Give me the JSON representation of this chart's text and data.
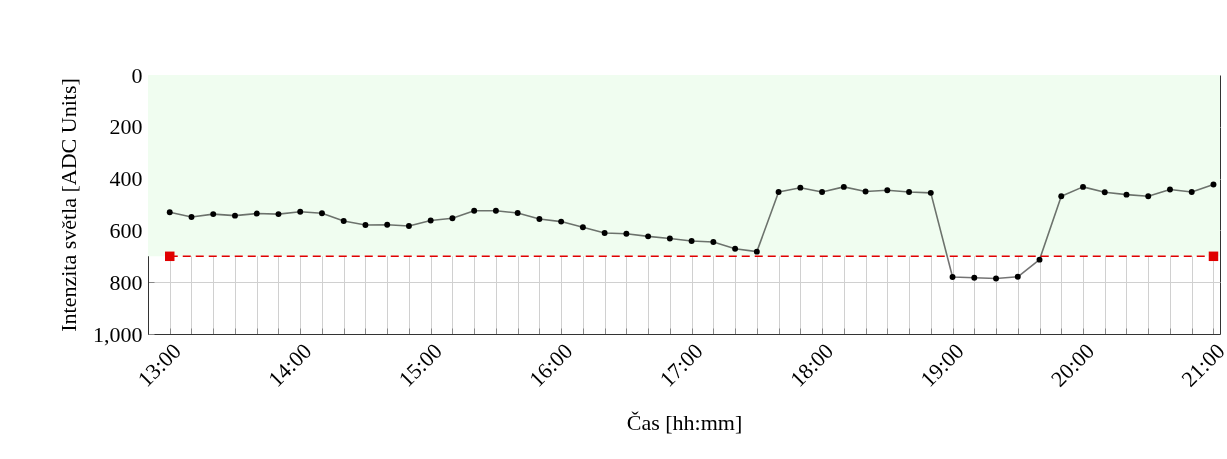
{
  "chart_data": {
    "type": "line",
    "xlabel": "Čas [hh:mm]",
    "ylabel": "Intenzita světla [ADC Units]",
    "x": [
      13,
      13.1667,
      13.3333,
      13.5,
      13.6667,
      13.8333,
      14,
      14.1667,
      14.3333,
      14.5,
      14.6667,
      14.8333,
      15,
      15.1667,
      15.3333,
      15.5,
      15.6667,
      15.8333,
      16,
      16.1667,
      16.3333,
      16.5,
      16.6667,
      16.8333,
      17,
      17.1667,
      17.3333,
      17.5,
      17.6667,
      17.8333,
      18,
      18.1667,
      18.3333,
      18.5,
      18.6667,
      18.8333,
      19,
      19.1667,
      19.3333,
      19.5,
      19.6667,
      19.8333,
      20,
      20.1667,
      20.3333,
      20.5,
      20.6667,
      20.8333,
      21
    ],
    "series": [
      {
        "color": "#000000",
        "marker": "circle",
        "line_style": "solid",
        "values": [
          530,
          548,
          537,
          543,
          535,
          537,
          528,
          534,
          564,
          579,
          578,
          583,
          562,
          553,
          524,
          524,
          533,
          556,
          566,
          588,
          610,
          613,
          623,
          631,
          641,
          645,
          671,
          682,
          452,
          435,
          452,
          432,
          450,
          445,
          452,
          455,
          780,
          783,
          786,
          779,
          713,
          468,
          432,
          453,
          462,
          468,
          442,
          452,
          423
        ]
      },
      {
        "color": "#e00000",
        "marker": "square",
        "line_style": "dashed",
        "x": [
          13,
          21
        ],
        "values": [
          700,
          700
        ]
      }
    ],
    "bands": [
      {
        "axis": "y",
        "from": 0,
        "to": 700,
        "color": "#f0fdf0"
      }
    ],
    "xlim": [
      12.8333,
      21.05
    ],
    "ylim": [
      1000,
      0
    ],
    "xticks": [
      {
        "value": 13,
        "label": "13:00"
      },
      {
        "value": 13.1667,
        "label": null
      },
      {
        "value": 13.3333,
        "label": null
      },
      {
        "value": 13.5,
        "label": null
      },
      {
        "value": 13.6667,
        "label": null
      },
      {
        "value": 13.8333,
        "label": null
      },
      {
        "value": 14,
        "label": "14:00"
      },
      {
        "value": 14.1667,
        "label": null
      },
      {
        "value": 14.3333,
        "label": null
      },
      {
        "value": 14.5,
        "label": null
      },
      {
        "value": 14.6667,
        "label": null
      },
      {
        "value": 14.8333,
        "label": null
      },
      {
        "value": 15,
        "label": "15:00"
      },
      {
        "value": 15.1667,
        "label": null
      },
      {
        "value": 15.3333,
        "label": null
      },
      {
        "value": 15.5,
        "label": null
      },
      {
        "value": 15.6667,
        "label": null
      },
      {
        "value": 15.8333,
        "label": null
      },
      {
        "value": 16,
        "label": "16:00"
      },
      {
        "value": 16.1667,
        "label": null
      },
      {
        "value": 16.3333,
        "label": null
      },
      {
        "value": 16.5,
        "label": null
      },
      {
        "value": 16.6667,
        "label": null
      },
      {
        "value": 16.8333,
        "label": null
      },
      {
        "value": 17,
        "label": "17:00"
      },
      {
        "value": 17.1667,
        "label": null
      },
      {
        "value": 17.3333,
        "label": null
      },
      {
        "value": 17.5,
        "label": null
      },
      {
        "value": 17.6667,
        "label": null
      },
      {
        "value": 17.8333,
        "label": null
      },
      {
        "value": 18,
        "label": "18:00"
      },
      {
        "value": 18.1667,
        "label": null
      },
      {
        "value": 18.3333,
        "label": null
      },
      {
        "value": 18.5,
        "label": null
      },
      {
        "value": 18.6667,
        "label": null
      },
      {
        "value": 18.8333,
        "label": null
      },
      {
        "value": 19,
        "label": "19:00"
      },
      {
        "value": 19.1667,
        "label": null
      },
      {
        "value": 19.3333,
        "label": null
      },
      {
        "value": 19.5,
        "label": null
      },
      {
        "value": 19.6667,
        "label": null
      },
      {
        "value": 19.8333,
        "label": null
      },
      {
        "value": 20,
        "label": "20:00"
      },
      {
        "value": 20.1667,
        "label": null
      },
      {
        "value": 20.3333,
        "label": null
      },
      {
        "value": 20.5,
        "label": null
      },
      {
        "value": 20.6667,
        "label": null
      },
      {
        "value": 20.8333,
        "label": null
      },
      {
        "value": 21,
        "label": "21:00"
      }
    ],
    "yticks": [
      0,
      200,
      400,
      600,
      800,
      {
        "value": 1000,
        "label": "1,000"
      }
    ],
    "grid": true
  }
}
